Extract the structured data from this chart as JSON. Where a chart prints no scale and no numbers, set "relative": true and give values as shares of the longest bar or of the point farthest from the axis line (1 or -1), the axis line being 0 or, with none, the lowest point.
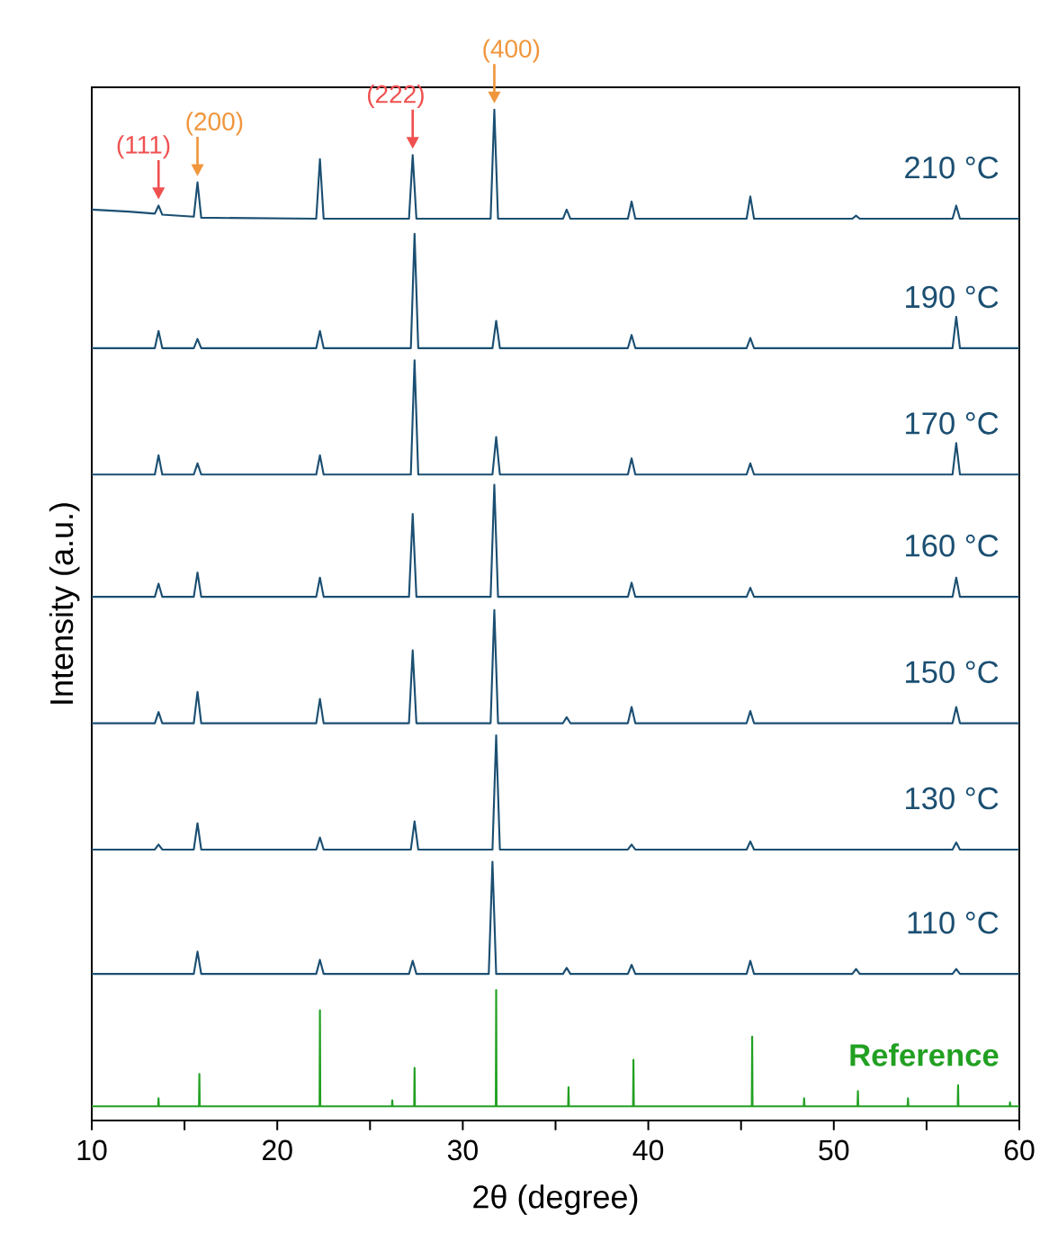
{
  "chart_data": {
    "type": "line",
    "relative": true,
    "xlabel": "2θ (degree)",
    "ylabel": "Intensity (a.u.)",
    "xlim": [
      10,
      60
    ],
    "xticks": [
      10,
      {
        "value": 15,
        "label": null
      },
      20,
      {
        "value": 25,
        "label": null
      },
      30,
      {
        "value": 35,
        "label": null
      },
      40,
      {
        "value": 45,
        "label": null
      },
      50,
      {
        "value": 55,
        "label": null
      },
      60
    ],
    "tick_labels": "x",
    "annotations": [
      {
        "text": "(111)",
        "x": 13.6,
        "y": 0.905
      },
      {
        "text": "(200)",
        "x": 15.7,
        "y": 0.928
      },
      {
        "text": "(222)",
        "x": 27.3,
        "y": 0.955
      },
      {
        "text": "(400)",
        "x": 31.7,
        "y": 1.0
      }
    ],
    "series": [
      {
        "name": "210 °C",
        "color": "#1b4f72",
        "x": [
          10,
          12,
          13.4,
          13.6,
          13.8,
          15.5,
          15.7,
          15.9,
          22.1,
          22.3,
          22.5,
          27.1,
          27.3,
          27.5,
          31.5,
          31.7,
          31.9,
          35.4,
          35.6,
          35.8,
          38.9,
          39.1,
          39.3,
          45.3,
          45.5,
          45.7,
          51.0,
          51.2,
          51.4,
          56.4,
          56.6,
          56.8,
          60
        ],
        "values": [
          0.901,
          0.899,
          0.897,
          0.905,
          0.896,
          0.894,
          0.928,
          0.893,
          0.892,
          0.951,
          0.892,
          0.892,
          0.955,
          0.892,
          0.892,
          1.0,
          0.892,
          0.892,
          0.901,
          0.892,
          0.892,
          0.909,
          0.892,
          0.892,
          0.914,
          0.892,
          0.892,
          0.895,
          0.892,
          0.892,
          0.905,
          0.892,
          0.892
        ]
      },
      {
        "name": "190 °C",
        "color": "#1b4f72",
        "x": [
          10,
          13.4,
          13.6,
          13.8,
          15.5,
          15.7,
          15.9,
          22.1,
          22.3,
          22.5,
          27.2,
          27.4,
          27.6,
          31.6,
          31.8,
          32.0,
          38.9,
          39.1,
          39.3,
          45.3,
          45.5,
          45.7,
          56.4,
          56.6,
          56.8,
          60
        ],
        "values": [
          0.764,
          0.764,
          0.781,
          0.764,
          0.764,
          0.773,
          0.764,
          0.764,
          0.781,
          0.764,
          0.764,
          0.877,
          0.764,
          0.764,
          0.791,
          0.764,
          0.764,
          0.777,
          0.764,
          0.764,
          0.774,
          0.764,
          0.764,
          0.795,
          0.764,
          0.764
        ]
      },
      {
        "name": "170 °C",
        "color": "#1b4f72",
        "x": [
          10,
          13.4,
          13.6,
          13.8,
          15.5,
          15.7,
          15.9,
          22.1,
          22.3,
          22.5,
          27.2,
          27.4,
          27.6,
          31.6,
          31.8,
          32.0,
          38.9,
          39.1,
          39.3,
          45.3,
          45.5,
          45.7,
          56.4,
          56.6,
          56.8,
          60
        ],
        "values": [
          0.639,
          0.639,
          0.658,
          0.639,
          0.639,
          0.65,
          0.639,
          0.639,
          0.658,
          0.639,
          0.639,
          0.752,
          0.639,
          0.639,
          0.676,
          0.639,
          0.639,
          0.655,
          0.639,
          0.639,
          0.65,
          0.639,
          0.639,
          0.67,
          0.639,
          0.639
        ]
      },
      {
        "name": "160 °C",
        "color": "#1b4f72",
        "x": [
          10,
          13.4,
          13.6,
          13.8,
          15.5,
          15.7,
          15.9,
          22.1,
          22.3,
          22.5,
          27.1,
          27.3,
          27.5,
          31.5,
          31.7,
          31.9,
          38.9,
          39.1,
          39.3,
          45.3,
          45.5,
          45.7,
          56.4,
          56.6,
          56.8,
          60
        ],
        "values": [
          0.518,
          0.518,
          0.531,
          0.518,
          0.518,
          0.542,
          0.518,
          0.518,
          0.537,
          0.518,
          0.518,
          0.6,
          0.518,
          0.518,
          0.629,
          0.518,
          0.518,
          0.532,
          0.518,
          0.518,
          0.527,
          0.518,
          0.518,
          0.537,
          0.518,
          0.518
        ]
      },
      {
        "name": "150 °C",
        "color": "#1b4f72",
        "x": [
          10,
          13.4,
          13.6,
          13.8,
          15.5,
          15.7,
          15.9,
          22.1,
          22.3,
          22.5,
          27.1,
          27.3,
          27.5,
          31.5,
          31.7,
          31.9,
          35.4,
          35.6,
          35.8,
          38.9,
          39.1,
          39.3,
          45.3,
          45.5,
          45.7,
          56.4,
          56.6,
          56.8,
          60
        ],
        "values": [
          0.393,
          0.393,
          0.404,
          0.393,
          0.393,
          0.424,
          0.393,
          0.393,
          0.417,
          0.393,
          0.393,
          0.465,
          0.393,
          0.393,
          0.505,
          0.393,
          0.393,
          0.399,
          0.393,
          0.393,
          0.409,
          0.393,
          0.393,
          0.405,
          0.393,
          0.393,
          0.409,
          0.393,
          0.393
        ]
      },
      {
        "name": "130 °C",
        "color": "#1b4f72",
        "x": [
          10,
          13.4,
          13.6,
          13.8,
          15.5,
          15.7,
          15.9,
          22.1,
          22.3,
          22.5,
          27.2,
          27.4,
          27.6,
          31.6,
          31.8,
          32.0,
          38.9,
          39.1,
          39.3,
          45.3,
          45.5,
          45.7,
          56.4,
          56.6,
          56.8,
          60
        ],
        "values": [
          0.268,
          0.268,
          0.273,
          0.268,
          0.268,
          0.294,
          0.268,
          0.268,
          0.28,
          0.268,
          0.268,
          0.296,
          0.268,
          0.268,
          0.381,
          0.268,
          0.268,
          0.273,
          0.268,
          0.268,
          0.276,
          0.268,
          0.268,
          0.275,
          0.268,
          0.268
        ]
      },
      {
        "name": "110 °C",
        "color": "#1b4f72",
        "x": [
          10,
          15.5,
          15.7,
          15.9,
          22.1,
          22.3,
          22.5,
          27.1,
          27.3,
          27.5,
          31.4,
          31.6,
          31.8,
          35.4,
          35.6,
          35.8,
          38.9,
          39.1,
          39.3,
          45.3,
          45.5,
          45.7,
          51.0,
          51.2,
          51.4,
          56.4,
          56.6,
          56.8,
          60
        ],
        "values": [
          0.145,
          0.145,
          0.167,
          0.145,
          0.145,
          0.159,
          0.145,
          0.145,
          0.158,
          0.145,
          0.145,
          0.256,
          0.145,
          0.145,
          0.151,
          0.145,
          0.145,
          0.154,
          0.145,
          0.145,
          0.158,
          0.145,
          0.145,
          0.15,
          0.145,
          0.145,
          0.15,
          0.145,
          0.145
        ]
      },
      {
        "name": "Reference",
        "color": "#22a022",
        "x": [
          10,
          13.58,
          13.6,
          13.62,
          15.78,
          15.8,
          15.82,
          22.28,
          22.3,
          22.32,
          26.18,
          26.2,
          26.22,
          27.38,
          27.4,
          27.42,
          31.78,
          31.8,
          31.82,
          35.68,
          35.7,
          35.72,
          39.18,
          39.2,
          39.22,
          45.58,
          45.6,
          45.62,
          48.38,
          48.4,
          48.42,
          51.28,
          51.3,
          51.32,
          53.98,
          54.0,
          54.02,
          56.68,
          56.7,
          56.72,
          59.48,
          59.5,
          59.52,
          60
        ],
        "values": [
          0.014,
          0.014,
          0.022,
          0.014,
          0.014,
          0.046,
          0.014,
          0.014,
          0.109,
          0.014,
          0.014,
          0.02,
          0.014,
          0.014,
          0.052,
          0.014,
          0.014,
          0.129,
          0.014,
          0.014,
          0.033,
          0.014,
          0.014,
          0.06,
          0.014,
          0.014,
          0.083,
          0.014,
          0.014,
          0.022,
          0.014,
          0.014,
          0.029,
          0.014,
          0.014,
          0.022,
          0.014,
          0.014,
          0.035,
          0.014,
          0.014,
          0.018,
          0.014,
          0.014
        ]
      }
    ]
  }
}
